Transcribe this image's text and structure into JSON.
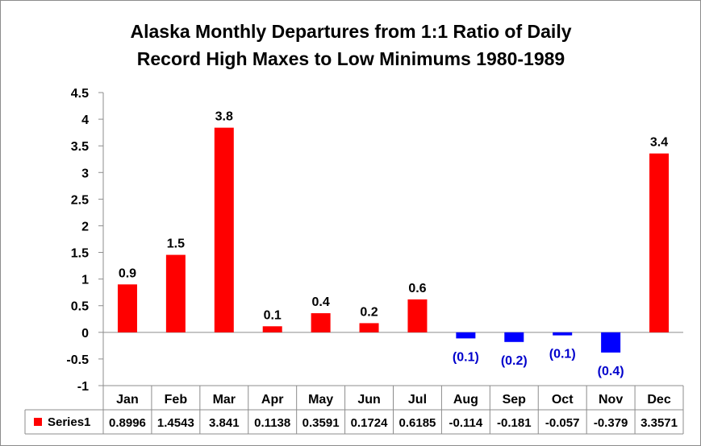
{
  "chart_data": {
    "type": "bar",
    "title": [
      "Alaska Monthly Departures from 1:1 Ratio of Daily",
      "Record High Maxes to Low Minimums 1980-1989"
    ],
    "categories": [
      "Jan",
      "Feb",
      "Mar",
      "Apr",
      "May",
      "Jun",
      "Jul",
      "Aug",
      "Sep",
      "Oct",
      "Nov",
      "Dec"
    ],
    "series": [
      {
        "name": "Series1",
        "values": [
          0.8996,
          1.4543,
          3.841,
          0.1138,
          0.3591,
          0.1724,
          0.6185,
          -0.114,
          -0.181,
          -0.057,
          -0.379,
          3.3571
        ],
        "table_values": [
          "0.8996",
          "1.4543",
          "3.841",
          "0.1138",
          "0.3591",
          "0.1724",
          "0.6185",
          "-0.114",
          "-0.181",
          "-0.057",
          "-0.379",
          "3.3571"
        ],
        "data_labels": [
          "0.9",
          "1.5",
          "3.8",
          "0.1",
          "0.4",
          "0.2",
          "0.6",
          "(0.1)",
          "(0.2)",
          "(0.1)",
          "(0.4)",
          "3.4"
        ]
      }
    ],
    "positive_color": "#ff0000",
    "negative_color": "#0000ff",
    "negative_label_color": "#0000cc",
    "ylim": [
      -1,
      4.5
    ],
    "ytick_step": 0.5,
    "yticks": [
      "4.5",
      "4",
      "3.5",
      "3",
      "2.5",
      "2",
      "1.5",
      "1",
      "0.5",
      "0",
      "-0.5",
      "-1"
    ],
    "grid": false,
    "legend": "data-table"
  }
}
